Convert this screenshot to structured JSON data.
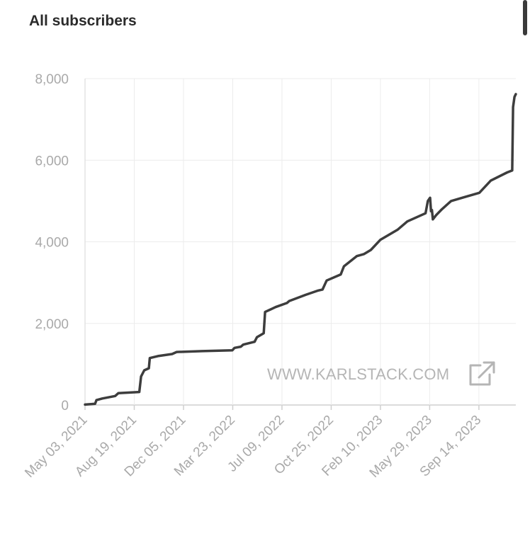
{
  "title": "All subscribers",
  "watermark": {
    "text": "WWW.KARLSTACK.COM",
    "icon": "external-link-icon"
  },
  "colors": {
    "line": "#3d3d3d",
    "grid": "#ececec",
    "axis": "#cfcfcf",
    "text": "#a9a9a9"
  },
  "chart_data": {
    "type": "line",
    "title": "All subscribers",
    "xlabel": "",
    "ylabel": "",
    "ylim": [
      0,
      8000
    ],
    "y_ticks": [
      0,
      2000,
      4000,
      6000,
      8000
    ],
    "y_tick_labels": [
      "0",
      "2,000",
      "4,000",
      "6,000",
      "8,000"
    ],
    "x_ticks": [
      "2021-05-03",
      "2021-08-19",
      "2021-12-05",
      "2022-03-23",
      "2022-07-09",
      "2022-10-25",
      "2023-02-10",
      "2023-05-29",
      "2023-09-14"
    ],
    "x_tick_labels": [
      "May 03, 2021",
      "Aug 19, 2021",
      "Dec 05, 2021",
      "Mar 23, 2022",
      "Jul 09, 2022",
      "Oct 25, 2022",
      "Feb 10, 2023",
      "May 29, 2023",
      "Sep 14, 2023"
    ],
    "xlim": [
      "2021-05-03",
      "2023-12-04"
    ],
    "grid": true,
    "series": [
      {
        "x": [
          "2021-05-03",
          "2021-05-25",
          "2021-05-28",
          "2021-06-10",
          "2021-07-08",
          "2021-07-15",
          "2021-08-30",
          "2021-09-03",
          "2021-09-10",
          "2021-09-20",
          "2021-09-22",
          "2021-10-10",
          "2021-11-10",
          "2021-11-20",
          "2022-01-15",
          "2022-03-22",
          "2022-03-27",
          "2022-04-10",
          "2022-04-15",
          "2022-05-10",
          "2022-05-15",
          "2022-05-30",
          "2022-06-02",
          "2022-06-25",
          "2022-07-20",
          "2022-07-25",
          "2022-08-30",
          "2022-09-25",
          "2022-10-06",
          "2022-10-15",
          "2022-11-15",
          "2022-11-22",
          "2022-12-20",
          "2023-01-05",
          "2023-01-20",
          "2023-02-10",
          "2023-03-20",
          "2023-04-10",
          "2023-05-20",
          "2023-05-25",
          "2023-05-30",
          "2023-06-01",
          "2023-06-03",
          "2023-06-05",
          "2023-06-12",
          "2023-06-25",
          "2023-07-15",
          "2023-08-15",
          "2023-09-15",
          "2023-10-10",
          "2023-11-15",
          "2023-11-26",
          "2023-11-28",
          "2023-12-01",
          "2023-12-04"
        ],
        "values": [
          10,
          30,
          120,
          160,
          220,
          290,
          320,
          700,
          850,
          900,
          1150,
          1200,
          1250,
          1300,
          1320,
          1340,
          1400,
          1430,
          1480,
          1550,
          1660,
          1760,
          2280,
          2400,
          2500,
          2550,
          2700,
          2800,
          2830,
          3050,
          3200,
          3400,
          3650,
          3700,
          3800,
          4050,
          4300,
          4500,
          4700,
          5000,
          5080,
          4750,
          4780,
          4550,
          4650,
          4800,
          5000,
          5100,
          5200,
          5500,
          5700,
          5750,
          7300,
          7550,
          7620
        ]
      }
    ]
  }
}
